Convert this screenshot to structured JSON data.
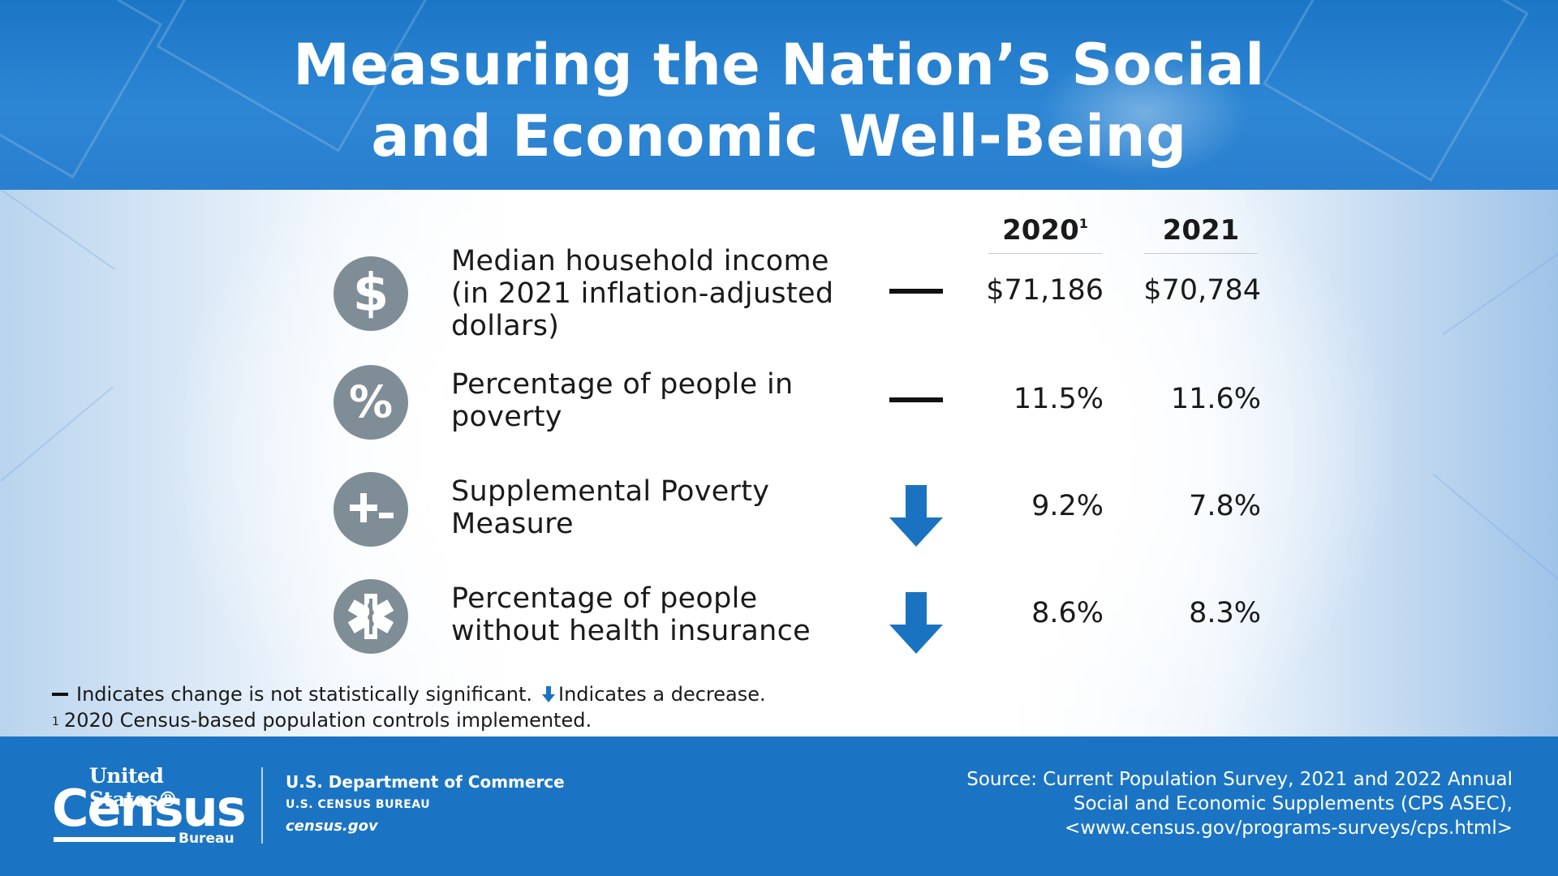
{
  "title": {
    "line1": "Measuring the Nation’s Social",
    "line2": "and Economic Well-Being"
  },
  "columns": {
    "col1": "2020",
    "col1_footnote": "1",
    "col2": "2021"
  },
  "rows": [
    {
      "icon": "dollar-icon",
      "icon_glyph": "$",
      "label_lines": [
        "Median household income",
        "(in 2021 inflation-adjusted",
        "dollars)"
      ],
      "indicator": "not-significant",
      "v2020": "$71,186",
      "v2021": "$70,784"
    },
    {
      "icon": "percent-icon",
      "icon_glyph": "%",
      "label_lines": [
        "Percentage of people in",
        "poverty"
      ],
      "indicator": "not-significant",
      "v2020": "11.5%",
      "v2021": "11.6%"
    },
    {
      "icon": "plus-minus-icon",
      "icon_glyph": "+-",
      "label_lines": [
        "Supplemental Poverty",
        "Measure"
      ],
      "indicator": "decrease",
      "v2020": "9.2%",
      "v2021": "7.8%"
    },
    {
      "icon": "medical-star-icon",
      "icon_glyph": "",
      "label_lines": [
        "Percentage of people",
        "without health insurance"
      ],
      "indicator": "decrease",
      "v2020": "8.6%",
      "v2021": "8.3%"
    }
  ],
  "legend": {
    "not_significant": "Indicates change is not statistically significant.",
    "decrease": "Indicates a decrease.",
    "footnote_mark": "1",
    "footnote": "2020 Census-based population controls implemented."
  },
  "footer": {
    "logo_us": "United States®",
    "logo_census": "Census",
    "logo_bureau": "Bureau",
    "dept": "U.S. Department of Commerce",
    "bureau": "U.S. CENSUS BUREAU",
    "website": "census.gov",
    "source_lines": [
      "Source: Current Population Survey, 2021 and 2022 Annual",
      "Social and Economic Supplements (CPS ASEC),",
      "<www.census.gov/programs-surveys/cps.html>"
    ]
  },
  "colors": {
    "header_blue": "#1c76c6",
    "footer_blue": "#1b74c3",
    "arrow_blue": "#1a73c1",
    "icon_gray": "#7f8d97"
  }
}
